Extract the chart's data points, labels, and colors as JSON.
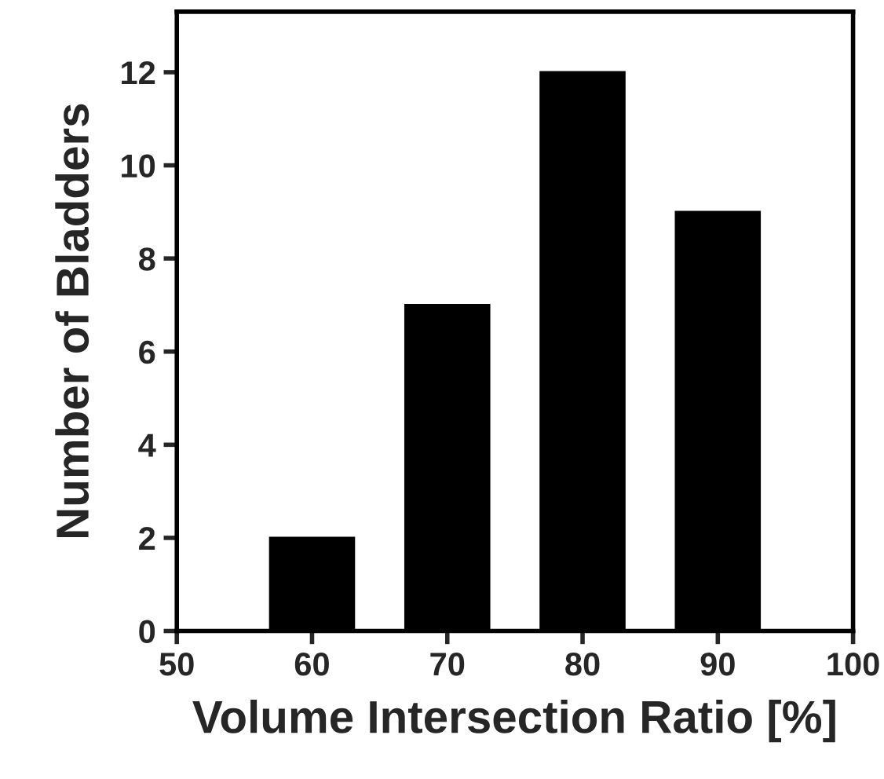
{
  "chart_data": {
    "type": "bar",
    "xlabel": "Volume Intersection Ratio [%]",
    "ylabel": "Number of Bladders",
    "x": [
      60,
      70,
      80,
      90
    ],
    "values": [
      2,
      7,
      12,
      9
    ],
    "color": "#000000",
    "xlim": [
      50,
      100
    ],
    "xticks": [
      50,
      60,
      70,
      80,
      90,
      100
    ],
    "ylim": [
      0,
      13.3
    ],
    "yticks": [
      0,
      2,
      4,
      6,
      8,
      10,
      12
    ],
    "grid": false
  }
}
